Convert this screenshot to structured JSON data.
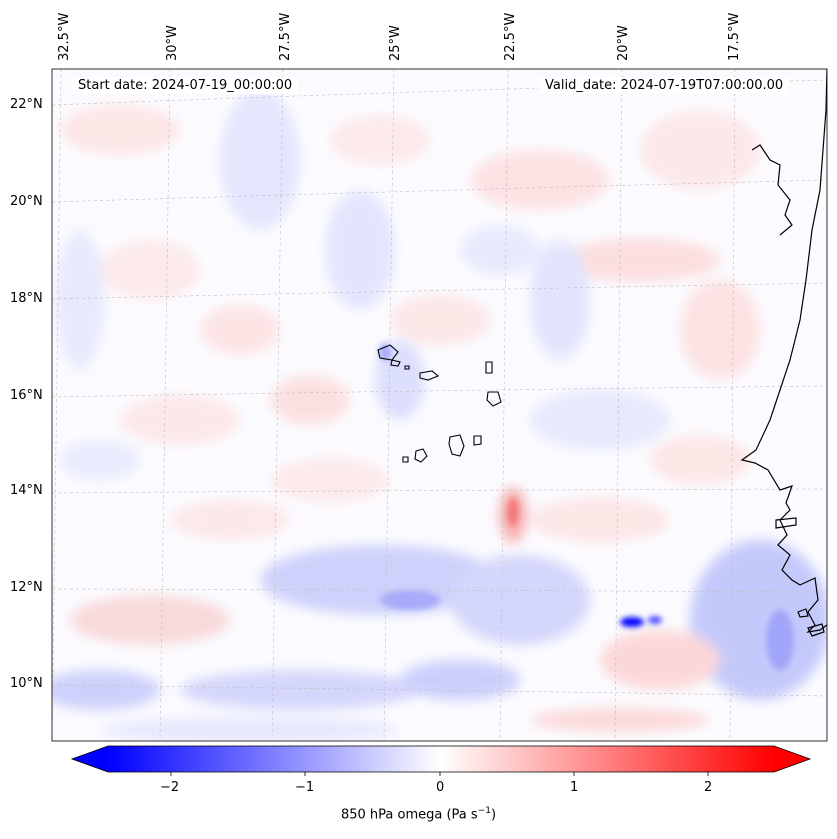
{
  "header": {
    "start_date": "Start date: 2024-07-19_00:00:00",
    "valid_date": "Valid_date: 2024-07-19T07:00:00.00"
  },
  "map": {
    "projection": "lambert-conformal",
    "region": "Eastern tropical Atlantic, Cape Verde and West African coast",
    "longitude_labels": [
      "32.5°W",
      "30°W",
      "27.5°W",
      "25°W",
      "22.5°W",
      "20°W",
      "17.5°W"
    ],
    "latitude_labels": [
      "22°N",
      "20°N",
      "18°N",
      "16°N",
      "14°N",
      "12°N",
      "10°N"
    ],
    "gridlines": "dashed light gray",
    "coastlines": "black"
  },
  "colorbar": {
    "variable": "850 hPa omega",
    "units_base": "Pa s",
    "units_exponent": "−1",
    "ticks": [
      "−2",
      "−1",
      "0",
      "1",
      "2"
    ],
    "range": [
      -2.7,
      2.7
    ],
    "colormap": "bwr",
    "extend": "both",
    "colors": {
      "negative": "#0000ff",
      "zero": "#ffffff",
      "positive": "#ff0000"
    }
  }
}
